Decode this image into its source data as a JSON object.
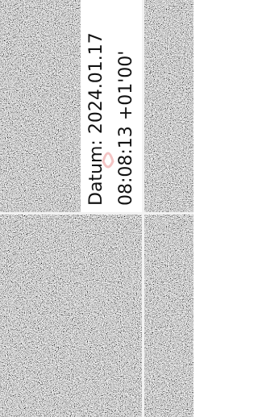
{
  "signature": {
    "line1": "Datum: 2024.01.17",
    "line2": "08:08:13 +01'00'"
  }
}
